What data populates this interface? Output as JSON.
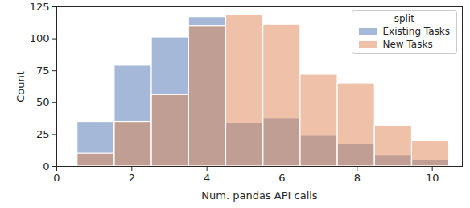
{
  "chart_data": {
    "type": "histogram",
    "xlabel": "Num. pandas API calls",
    "ylabel": "Count",
    "bins": [
      0.55,
      1.54,
      2.53,
      3.52,
      4.51,
      5.5,
      6.49,
      7.48,
      8.47,
      9.46,
      10.45
    ],
    "series": [
      {
        "name": "Existing Tasks",
        "color": "#4c72b0",
        "values": [
          35,
          79,
          101,
          117,
          34,
          38,
          24,
          18,
          9,
          5
        ]
      },
      {
        "name": "New Tasks",
        "color": "#dd8452",
        "values": [
          10,
          35,
          56,
          110,
          119,
          111,
          72,
          65,
          32,
          20
        ]
      }
    ],
    "xlim": [
      0,
      10.8
    ],
    "ylim": [
      0,
      125
    ],
    "xticks": [
      0,
      2,
      4,
      6,
      8,
      10
    ],
    "yticks": [
      0,
      25,
      50,
      75,
      100,
      125
    ],
    "grid": false,
    "legend": "upper right",
    "legend_title": "split"
  }
}
